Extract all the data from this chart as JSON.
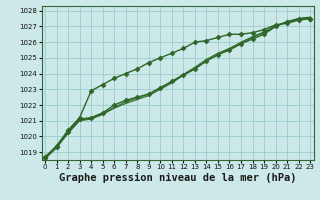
{
  "background_color": "#cce8e8",
  "plot_bg_color": "#cce8e8",
  "grid_color": "#99cccc",
  "line_color": "#2d6628",
  "xlabel": "Graphe pression niveau de la mer (hPa)",
  "xlabel_fontsize": 7.5,
  "ylim": [
    1018.5,
    1028.3
  ],
  "xlim": [
    -0.3,
    23.3
  ],
  "yticks": [
    1019,
    1020,
    1021,
    1022,
    1023,
    1024,
    1025,
    1026,
    1027,
    1028
  ],
  "xticks": [
    0,
    1,
    2,
    3,
    4,
    5,
    6,
    7,
    8,
    9,
    10,
    11,
    12,
    13,
    14,
    15,
    16,
    17,
    18,
    19,
    20,
    21,
    22,
    23
  ],
  "series": [
    {
      "x": [
        0,
        1,
        2,
        3,
        4,
        5,
        6,
        7,
        8,
        9,
        10,
        11,
        12,
        13,
        14,
        15,
        16,
        17,
        18,
        19,
        20,
        21,
        22,
        23
      ],
      "y": [
        1018.7,
        1019.4,
        1020.4,
        1021.2,
        1022.9,
        1023.3,
        1023.7,
        1024.0,
        1024.3,
        1024.7,
        1025.0,
        1025.3,
        1025.6,
        1026.0,
        1026.1,
        1026.3,
        1026.5,
        1026.5,
        1026.6,
        1026.8,
        1027.1,
        1027.2,
        1027.4,
        1027.5
      ],
      "marker": "D",
      "marker_size": 2.5,
      "linewidth": 1.0
    },
    {
      "x": [
        0,
        1,
        2,
        3,
        4,
        5,
        6,
        7,
        8,
        9,
        10,
        11,
        12,
        13,
        14,
        15,
        16,
        17,
        18,
        19,
        20,
        21,
        22,
        23
      ],
      "y": [
        1018.6,
        1019.3,
        1020.3,
        1021.1,
        1021.2,
        1021.5,
        1022.0,
        1022.3,
        1022.5,
        1022.7,
        1023.1,
        1023.5,
        1023.9,
        1024.3,
        1024.8,
        1025.2,
        1025.5,
        1025.9,
        1026.2,
        1026.5,
        1027.0,
        1027.3,
        1027.45,
        1027.5
      ],
      "marker": "D",
      "marker_size": 2.5,
      "linewidth": 1.0
    },
    {
      "x": [
        0,
        1,
        2,
        3,
        4,
        5,
        6,
        7,
        8,
        9,
        10,
        11,
        12,
        13,
        14,
        15,
        16,
        17,
        18,
        19,
        20,
        21,
        22,
        23
      ],
      "y": [
        1018.6,
        1019.3,
        1020.2,
        1021.0,
        1021.1,
        1021.4,
        1021.8,
        1022.1,
        1022.35,
        1022.6,
        1023.0,
        1023.4,
        1023.9,
        1024.3,
        1024.8,
        1025.2,
        1025.55,
        1025.9,
        1026.3,
        1026.6,
        1027.0,
        1027.3,
        1027.5,
        1027.55
      ],
      "marker": null,
      "marker_size": 0,
      "linewidth": 0.8
    },
    {
      "x": [
        0,
        1,
        2,
        3,
        4,
        5,
        6,
        7,
        8,
        9,
        10,
        11,
        12,
        13,
        14,
        15,
        16,
        17,
        18,
        19,
        20,
        21,
        22,
        23
      ],
      "y": [
        1018.6,
        1019.3,
        1020.25,
        1021.05,
        1021.15,
        1021.45,
        1021.85,
        1022.2,
        1022.45,
        1022.7,
        1023.1,
        1023.5,
        1023.95,
        1024.4,
        1024.9,
        1025.3,
        1025.6,
        1026.0,
        1026.35,
        1026.65,
        1027.05,
        1027.3,
        1027.5,
        1027.6
      ],
      "marker": null,
      "marker_size": 0,
      "linewidth": 0.8
    }
  ]
}
